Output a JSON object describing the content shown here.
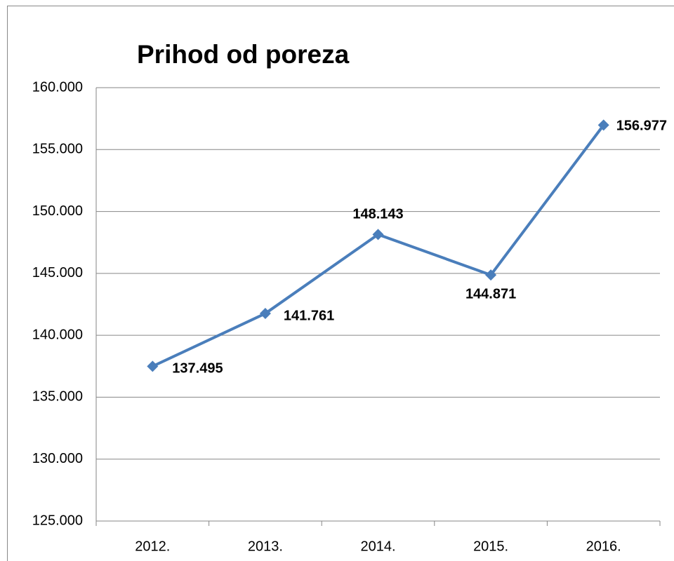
{
  "chart_data": {
    "type": "line",
    "title": "Prihod od poreza",
    "categories": [
      "2012.",
      "2013.",
      "2014.",
      "2015.",
      "2016."
    ],
    "series": [
      {
        "name": "Prihod od poreza",
        "color": "#4a7ebb",
        "values": [
          137495,
          141761,
          148143,
          144871,
          156977
        ],
        "value_labels": [
          "137.495",
          "141.761",
          "148.143",
          "144.871",
          "156.977"
        ]
      }
    ],
    "ylim": [
      125000,
      160000
    ],
    "yticks": [
      {
        "value": 125000,
        "label": "125.000"
      },
      {
        "value": 130000,
        "label": "130.000"
      },
      {
        "value": 135000,
        "label": "135.000"
      },
      {
        "value": 140000,
        "label": "140.000"
      },
      {
        "value": 145000,
        "label": "145.000"
      },
      {
        "value": 150000,
        "label": "150.000"
      },
      {
        "value": 155000,
        "label": "155.000"
      },
      {
        "value": 160000,
        "label": "160.000"
      }
    ],
    "grid": true
  }
}
